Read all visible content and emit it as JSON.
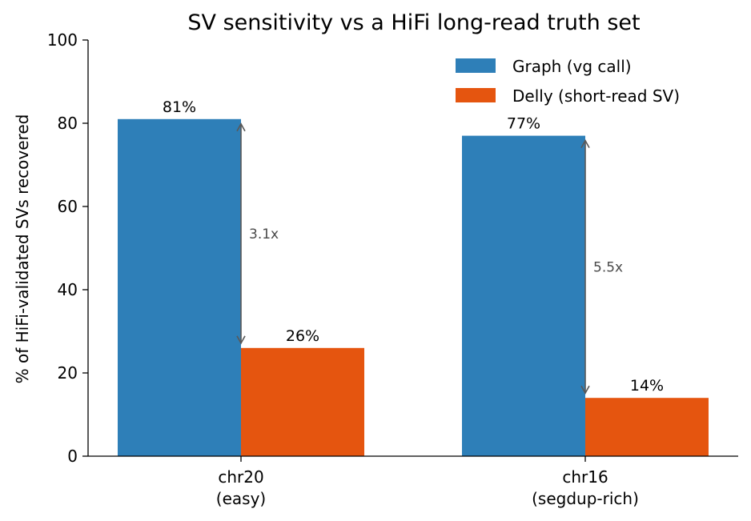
{
  "chart_data": {
    "type": "bar",
    "title": "SV sensitivity vs a HiFi long-read truth set",
    "ylabel": "% of HiFi-validated SVs recovered",
    "xlabel": "",
    "ylim": [
      0,
      100
    ],
    "yticks": [
      0,
      20,
      40,
      60,
      80,
      100
    ],
    "grid": false,
    "legend_position": "top-right",
    "categories": [
      {
        "name": "chr20",
        "subtitle": "(easy)"
      },
      {
        "name": "chr16",
        "subtitle": "(segdup-rich)"
      }
    ],
    "series": [
      {
        "name": "Graph (vg call)",
        "color": "#2e7fb8",
        "values": [
          81,
          77
        ],
        "labels": [
          "81%",
          "77%"
        ]
      },
      {
        "name": "Delly (short-read SV)",
        "color": "#e5550f",
        "values": [
          26,
          14
        ],
        "labels": [
          "26%",
          "14%"
        ]
      }
    ],
    "annotations": [
      {
        "category_index": 0,
        "text": "3.1x",
        "from": 81,
        "to": 26
      },
      {
        "category_index": 1,
        "text": "5.5x",
        "from": 77,
        "to": 14
      }
    ]
  }
}
